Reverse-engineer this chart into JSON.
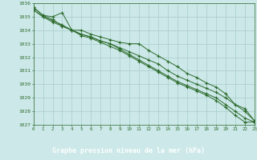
{
  "title": "Graphe pression niveau de la mer (hPa)",
  "background_color": "#cce8e8",
  "plot_bg_color": "#cce8e8",
  "grid_color": "#aacccc",
  "line_color": "#2d6b2d",
  "label_bg_color": "#2d6b2d",
  "label_text_color": "#ffffff",
  "xlim": [
    0,
    23
  ],
  "ylim": [
    1027,
    1036
  ],
  "xticks": [
    0,
    1,
    2,
    3,
    4,
    5,
    6,
    7,
    8,
    9,
    10,
    11,
    12,
    13,
    14,
    15,
    16,
    17,
    18,
    19,
    20,
    21,
    22,
    23
  ],
  "yticks": [
    1027,
    1028,
    1029,
    1030,
    1031,
    1032,
    1033,
    1034,
    1035,
    1036
  ],
  "series": [
    [
      1035.7,
      1035.1,
      1035.0,
      1035.3,
      1034.0,
      1034.0,
      1033.7,
      1033.5,
      1033.3,
      1033.1,
      1033.0,
      1033.0,
      1032.5,
      1032.1,
      1031.7,
      1031.3,
      1030.8,
      1030.5,
      1030.1,
      1029.8,
      1029.3,
      1028.5,
      1028.0,
      1027.3
    ],
    [
      1035.7,
      1035.1,
      1034.8,
      1034.3,
      1034.0,
      1033.7,
      1033.5,
      1033.2,
      1033.0,
      1032.7,
      1032.4,
      1032.1,
      1031.8,
      1031.5,
      1031.0,
      1030.6,
      1030.3,
      1030.0,
      1029.7,
      1029.4,
      1029.0,
      1028.5,
      1028.2,
      1027.3
    ],
    [
      1035.5,
      1035.0,
      1034.7,
      1034.4,
      1034.0,
      1033.7,
      1033.5,
      1033.2,
      1033.0,
      1032.6,
      1032.2,
      1031.8,
      1031.4,
      1031.0,
      1030.6,
      1030.2,
      1029.9,
      1029.6,
      1029.3,
      1029.0,
      1028.5,
      1028.0,
      1027.5,
      1027.2
    ],
    [
      1035.5,
      1035.0,
      1034.6,
      1034.3,
      1034.0,
      1033.6,
      1033.4,
      1033.1,
      1032.8,
      1032.5,
      1032.1,
      1031.7,
      1031.3,
      1030.9,
      1030.5,
      1030.1,
      1029.8,
      1029.5,
      1029.2,
      1028.8,
      1028.3,
      1027.7,
      1027.2,
      1027.2
    ]
  ]
}
